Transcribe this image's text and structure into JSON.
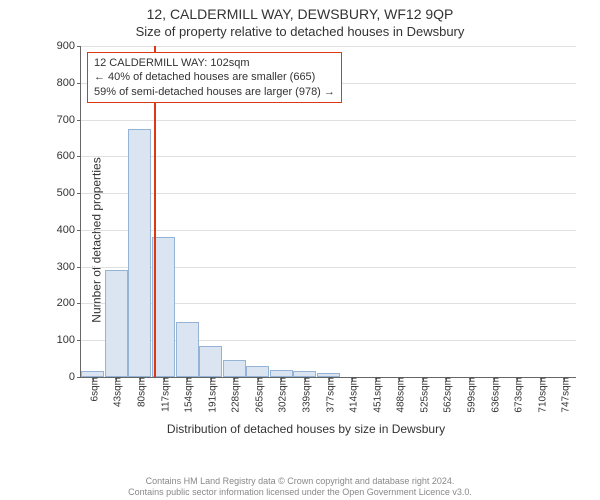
{
  "title_line1": "12, CALDERMILL WAY, DEWSBURY, WF12 9QP",
  "title_line2": "Size of property relative to detached houses in Dewsbury",
  "ylabel": "Number of detached properties",
  "xlabel": "Distribution of detached houses by size in Dewsbury",
  "chart": {
    "type": "histogram",
    "ylim": [
      0,
      900
    ],
    "ytick_step": 100,
    "background_color": "#ffffff",
    "grid_color": "#e0e0e0",
    "axis_color": "#666666",
    "bar_fill": "#dbe5f1",
    "bar_border": "#95b3d7",
    "marker_color": "#dc3912",
    "categories": [
      "6sqm",
      "43sqm",
      "80sqm",
      "117sqm",
      "154sqm",
      "191sqm",
      "228sqm",
      "265sqm",
      "302sqm",
      "339sqm",
      "377sqm",
      "414sqm",
      "451sqm",
      "488sqm",
      "525sqm",
      "562sqm",
      "599sqm",
      "636sqm",
      "673sqm",
      "710sqm",
      "747sqm"
    ],
    "values": [
      15,
      290,
      675,
      380,
      150,
      85,
      45,
      30,
      20,
      15,
      12,
      0,
      0,
      0,
      0,
      0,
      0,
      0,
      0,
      0,
      0
    ],
    "marker_at_sqm": 102,
    "label_fontsize": 12,
    "tick_fontsize": 11,
    "xtick_fontsize": 10
  },
  "info_box": {
    "line1": "12 CALDERMILL WAY: 102sqm",
    "line2": "← 40% of detached houses are smaller (665)",
    "line3": "59% of semi-detached houses are larger (978) →"
  },
  "footer": {
    "line1": "Contains HM Land Registry data © Crown copyright and database right 2024.",
    "line2": "Contains public sector information licensed under the Open Government Licence v3.0."
  }
}
